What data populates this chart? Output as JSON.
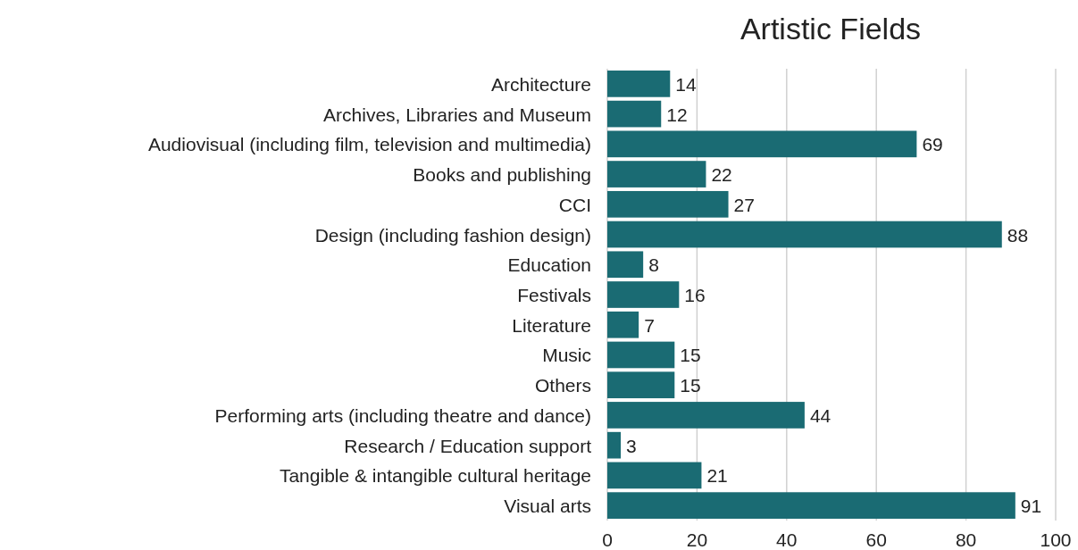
{
  "chart_data": {
    "type": "bar",
    "title": "Artistic Fields",
    "orientation": "horizontal",
    "categories": [
      "Architecture",
      "Archives, Libraries and Museum",
      "Audiovisual (including film, television and multimedia)",
      "Books and publishing",
      "CCI",
      "Design (including fashion design)",
      "Education",
      "Festivals",
      "Literature",
      "Music",
      "Others",
      "Performing arts (including theatre and dance)",
      "Research / Education support",
      "Tangible & intangible cultural heritage",
      "Visual arts"
    ],
    "values": [
      14,
      12,
      69,
      22,
      27,
      88,
      8,
      16,
      7,
      15,
      15,
      44,
      3,
      21,
      91
    ],
    "color": "#1a6b73",
    "xlim": [
      0,
      100
    ],
    "xticks": [
      0,
      20,
      40,
      60,
      80,
      100
    ],
    "grid": "x",
    "data_labels": true
  }
}
